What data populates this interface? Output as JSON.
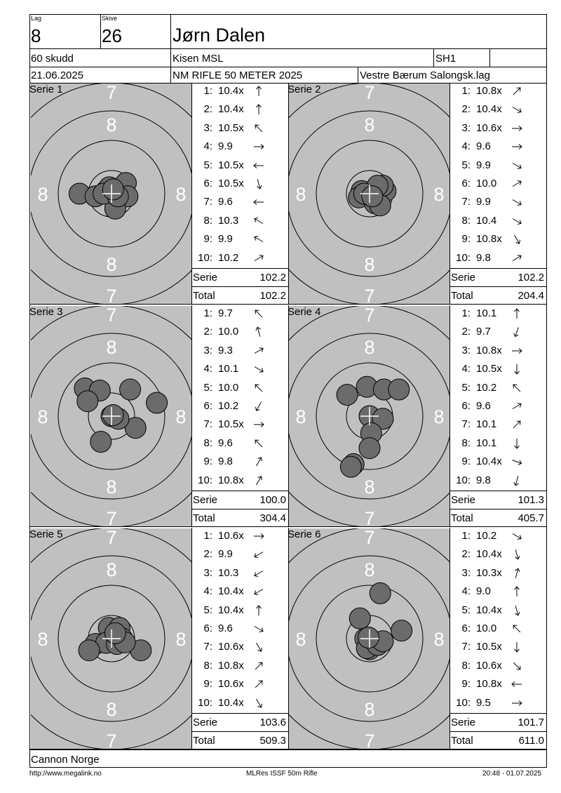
{
  "header": {
    "lag_label": "Lag",
    "lag_value": "8",
    "skive_label": "Skive",
    "skive_value": "26",
    "shooter_name": "Jørn Dalen",
    "shots_count": "60 skudd",
    "club": "Kisen MSL",
    "class": "SH1",
    "date": "21.06.2025",
    "event": "NM RIFLE 50 METER 2025",
    "organizer": "Vestre Bærum Salongsk.lag"
  },
  "ring_labels": {
    "seven": "7",
    "eight": "8"
  },
  "summary_labels": {
    "serie": "Serie",
    "total": "Total"
  },
  "series": [
    {
      "label": "Serie 1",
      "shots": [
        {
          "n": "1:",
          "v": "10.4x",
          "dir": 0
        },
        {
          "n": "2:",
          "v": "10.4x",
          "dir": 0
        },
        {
          "n": "3:",
          "v": "10.5x",
          "dir": 315
        },
        {
          "n": "4:",
          "v": "9.9",
          "dir": 90
        },
        {
          "n": "5:",
          "v": "10.5x",
          "dir": 270
        },
        {
          "n": "6:",
          "v": "10.5x",
          "dir": 165
        },
        {
          "n": "7:",
          "v": "9.6",
          "dir": 270
        },
        {
          "n": "8:",
          "v": "10.3",
          "dir": 300
        },
        {
          "n": "9:",
          "v": "9.9",
          "dir": 300
        },
        {
          "n": "10:",
          "v": "10.2",
          "dir": 60
        }
      ],
      "serie_score": "102.2",
      "total_score": "102.2",
      "hits": [
        [
          -0.1,
          -0.05
        ],
        [
          -0.04,
          -0.12
        ],
        [
          0.27,
          -0.2
        ],
        [
          0.3,
          0.05
        ],
        [
          0.07,
          0.28
        ],
        [
          -0.6,
          0.0
        ],
        [
          -0.3,
          0.05
        ],
        [
          -0.15,
          0.0
        ],
        [
          0.12,
          0.05
        ],
        [
          0.03,
          -0.08
        ]
      ]
    },
    {
      "label": "Serie 2",
      "shots": [
        {
          "n": "1:",
          "v": "10.8x",
          "dir": 45
        },
        {
          "n": "2:",
          "v": "10.4x",
          "dir": 120
        },
        {
          "n": "3:",
          "v": "10.6x",
          "dir": 90
        },
        {
          "n": "4:",
          "v": "9.6",
          "dir": 90
        },
        {
          "n": "5:",
          "v": "9.9",
          "dir": 120
        },
        {
          "n": "6:",
          "v": "10.0",
          "dir": 60
        },
        {
          "n": "7:",
          "v": "9.9",
          "dir": 120
        },
        {
          "n": "8:",
          "v": "10.4",
          "dir": 120
        },
        {
          "n": "9:",
          "v": "10.8x",
          "dir": 150
        },
        {
          "n": "10:",
          "v": "9.8",
          "dir": 60
        }
      ],
      "serie_score": "102.2",
      "total_score": "204.4",
      "hits": [
        [
          0.0,
          0.0
        ],
        [
          -0.15,
          -0.05
        ],
        [
          -0.2,
          0.07
        ],
        [
          0.3,
          -0.05
        ],
        [
          0.25,
          -0.15
        ],
        [
          0.15,
          -0.15
        ],
        [
          0.1,
          0.18
        ],
        [
          0.2,
          0.22
        ],
        [
          -0.1,
          0.0
        ],
        [
          0.05,
          0.05
        ]
      ]
    },
    {
      "label": "Serie 3",
      "shots": [
        {
          "n": "1:",
          "v": "9.7",
          "dir": 315
        },
        {
          "n": "2:",
          "v": "10.0",
          "dir": 345
        },
        {
          "n": "3:",
          "v": "9.3",
          "dir": 60
        },
        {
          "n": "4:",
          "v": "10.1",
          "dir": 120
        },
        {
          "n": "5:",
          "v": "10.0",
          "dir": 315
        },
        {
          "n": "6:",
          "v": "10.2",
          "dir": 210
        },
        {
          "n": "7:",
          "v": "10.5x",
          "dir": 90
        },
        {
          "n": "8:",
          "v": "9.6",
          "dir": 315
        },
        {
          "n": "9:",
          "v": "9.8",
          "dir": 30
        },
        {
          "n": "10:",
          "v": "10.8x",
          "dir": 30
        }
      ],
      "serie_score": "100.0",
      "total_score": "304.4",
      "hits": [
        [
          -0.5,
          -0.52
        ],
        [
          -0.22,
          -0.48
        ],
        [
          0.35,
          -0.5
        ],
        [
          0.45,
          0.22
        ],
        [
          -0.45,
          -0.28
        ],
        [
          0.0,
          0.0
        ],
        [
          0.13,
          0.05
        ],
        [
          -0.2,
          0.48
        ],
        [
          0.85,
          -0.25
        ],
        [
          0.03,
          -0.02
        ]
      ]
    },
    {
      "label": "Serie 4",
      "shots": [
        {
          "n": "1:",
          "v": "10.1",
          "dir": 0
        },
        {
          "n": "2:",
          "v": "9.7",
          "dir": 200
        },
        {
          "n": "3:",
          "v": "10.8x",
          "dir": 90
        },
        {
          "n": "4:",
          "v": "10.5x",
          "dir": 180
        },
        {
          "n": "5:",
          "v": "10.2",
          "dir": 315
        },
        {
          "n": "6:",
          "v": "9.6",
          "dir": 60
        },
        {
          "n": "7:",
          "v": "10.1",
          "dir": 45
        },
        {
          "n": "8:",
          "v": "10.1",
          "dir": 180
        },
        {
          "n": "9:",
          "v": "10.4x",
          "dir": 110
        },
        {
          "n": "10:",
          "v": "9.8",
          "dir": 195
        }
      ],
      "serie_score": "101.3",
      "total_score": "405.7",
      "hits": [
        [
          -0.05,
          -0.55
        ],
        [
          -0.42,
          -0.4
        ],
        [
          0.27,
          -0.5
        ],
        [
          0.55,
          -0.5
        ],
        [
          0.0,
          0.0
        ],
        [
          0.25,
          0.05
        ],
        [
          0.03,
          0.32
        ],
        [
          0.0,
          0.6
        ],
        [
          -0.3,
          0.9
        ],
        [
          -0.35,
          0.95
        ]
      ]
    },
    {
      "label": "Serie 5",
      "shots": [
        {
          "n": "1:",
          "v": "10.6x",
          "dir": 90
        },
        {
          "n": "2:",
          "v": "9.9",
          "dir": 240
        },
        {
          "n": "3:",
          "v": "10.3",
          "dir": 240
        },
        {
          "n": "4:",
          "v": "10.4x",
          "dir": 240
        },
        {
          "n": "5:",
          "v": "10.4x",
          "dir": 0
        },
        {
          "n": "6:",
          "v": "9.6",
          "dir": 120
        },
        {
          "n": "7:",
          "v": "10.6x",
          "dir": 150
        },
        {
          "n": "8:",
          "v": "10.8x",
          "dir": 45
        },
        {
          "n": "9:",
          "v": "10.6x",
          "dir": 45
        },
        {
          "n": "10:",
          "v": "10.4x",
          "dir": 150
        }
      ],
      "serie_score": "103.6",
      "total_score": "509.3",
      "hits": [
        [
          -0.05,
          -0.2
        ],
        [
          0.15,
          -0.2
        ],
        [
          0.2,
          0.0
        ],
        [
          -0.3,
          0.1
        ],
        [
          -0.1,
          0.08
        ],
        [
          0.55,
          0.22
        ],
        [
          -0.42,
          0.22
        ],
        [
          0.1,
          0.1
        ],
        [
          0.25,
          0.07
        ],
        [
          0.07,
          -0.1
        ]
      ]
    },
    {
      "label": "Serie 6",
      "shots": [
        {
          "n": "1:",
          "v": "10.2",
          "dir": 120
        },
        {
          "n": "2:",
          "v": "10.4x",
          "dir": 165
        },
        {
          "n": "3:",
          "v": "10.3x",
          "dir": 15
        },
        {
          "n": "4:",
          "v": "9.0",
          "dir": 0
        },
        {
          "n": "5:",
          "v": "10.4x",
          "dir": 165
        },
        {
          "n": "6:",
          "v": "10.0",
          "dir": 315
        },
        {
          "n": "7:",
          "v": "10.5x",
          "dir": 180
        },
        {
          "n": "8:",
          "v": "10.6x",
          "dir": 135
        },
        {
          "n": "9:",
          "v": "10.8x",
          "dir": 270
        },
        {
          "n": "10:",
          "v": "9.5",
          "dir": 90
        }
      ],
      "serie_score": "101.7",
      "total_score": "611.0",
      "hits": [
        [
          0.2,
          -0.85
        ],
        [
          -0.18,
          -0.38
        ],
        [
          0.6,
          -0.15
        ],
        [
          -0.08,
          0.0
        ],
        [
          0.05,
          0.13
        ],
        [
          0.0,
          0.2
        ],
        [
          -0.05,
          0.18
        ],
        [
          0.15,
          0.12
        ],
        [
          0.25,
          0.05
        ],
        [
          -0.02,
          -0.02
        ]
      ]
    }
  ],
  "footer": {
    "sponsor": "Cannon Norge",
    "url": "http://www.megalink.no",
    "software": "MLRes ISSF 50m Rifle",
    "timestamp": "20:48 - 01.07.2025"
  }
}
